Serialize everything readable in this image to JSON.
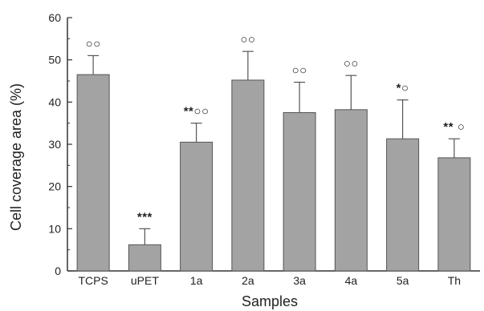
{
  "chart_data": {
    "type": "bar",
    "xlabel": "Samples",
    "ylabel": "Cell coverage area (%)",
    "ylim": [
      0,
      60
    ],
    "yticks": [
      0,
      10,
      20,
      30,
      40,
      50,
      60
    ],
    "categories": [
      "TCPS",
      "uPET",
      "1a",
      "2a",
      "3a",
      "4a",
      "5a",
      "Th"
    ],
    "values": [
      46.5,
      6.2,
      30.5,
      45.2,
      37.5,
      38.2,
      31.3,
      26.8
    ],
    "errors": [
      4.5,
      3.8,
      4.5,
      6.8,
      7.2,
      8.1,
      9.2,
      4.5
    ],
    "annotations": [
      "○○",
      "***",
      "**○○",
      "○○",
      "○○",
      "○○",
      "*○",
      "** ○"
    ],
    "colors": {
      "bar": "#a3a3a3",
      "bar_edge": "#555555",
      "axis": "#333333"
    },
    "grid": false
  }
}
